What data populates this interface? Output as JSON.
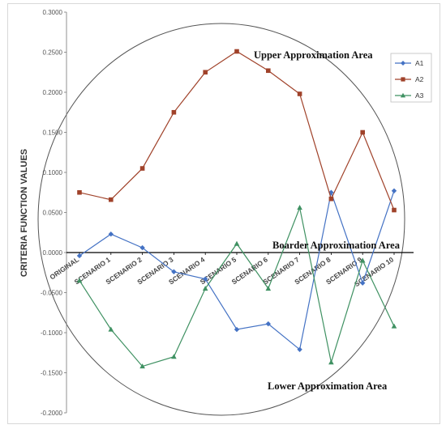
{
  "chart_data": {
    "type": "line",
    "title": "",
    "xlabel": "",
    "ylabel": "CRITERIA FUNCTION VALUES",
    "ylim": [
      -0.2,
      0.3
    ],
    "yticks": [
      "-0.2000",
      "-0.1500",
      "-0.1000",
      "-0.0500",
      "0.0000",
      "0.0500",
      "0.1000",
      "0.1500",
      "0.2000",
      "0.2500",
      "0.3000"
    ],
    "categories": [
      "ORIGINAL",
      "SCENARIO 1",
      "SCENARIO 2",
      "SCENARIO 3",
      "SCENARIO 4",
      "SCENARIO 5",
      "SCENARIO 6",
      "SCENARIO 7",
      "SCENARIO 8",
      "SCENARIO 9",
      "SCENARIO 10"
    ],
    "series": [
      {
        "name": "A1",
        "color": "#4472c4",
        "marker": "diamond",
        "values": [
          -0.004,
          0.023,
          0.006,
          -0.024,
          -0.033,
          -0.096,
          -0.089,
          -0.121,
          0.075,
          -0.038,
          0.077
        ]
      },
      {
        "name": "A2",
        "color": "#a0422a",
        "marker": "square",
        "values": [
          0.075,
          0.066,
          0.105,
          0.175,
          0.225,
          0.251,
          0.227,
          0.198,
          0.067,
          0.15,
          0.053
        ]
      },
      {
        "name": "A3",
        "color": "#3f9162",
        "marker": "triangle",
        "values": [
          -0.035,
          -0.096,
          -0.142,
          -0.13,
          -0.045,
          0.011,
          -0.045,
          0.056,
          -0.137,
          -0.01,
          -0.092
        ]
      }
    ],
    "legend_position": "top-right",
    "grid": false,
    "annotations": {
      "upper": "Upper Approximation Area",
      "boarder": "Boarder Approximation Area",
      "lower": "Lower Approximation Area"
    }
  }
}
